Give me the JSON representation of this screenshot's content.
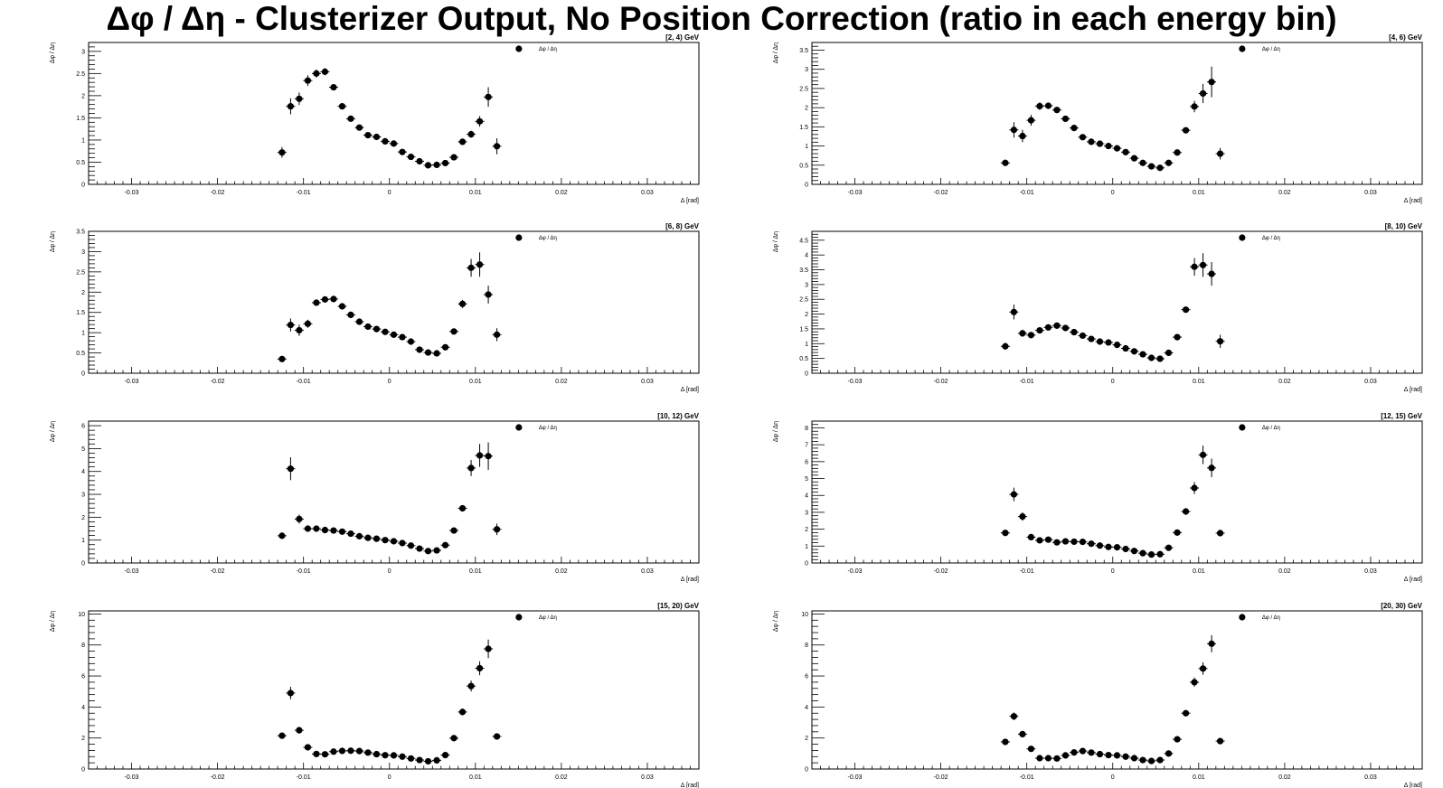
{
  "title": "Δφ / Δη  -  Clusterizer Output, No Position Correction  (ratio in each energy bin)",
  "chart_data": [
    {
      "type": "scatter",
      "bin_label": "[2, 4) GeV",
      "legend": "Δφ / Δη",
      "xlabel": "Δ  [rad]",
      "ylabel": "Δφ / Δη",
      "xlim": [
        -0.035,
        0.036
      ],
      "ylim": [
        0,
        3.2
      ],
      "xticks": [
        -0.03,
        -0.02,
        -0.01,
        0,
        0.01,
        0.02,
        0.03
      ],
      "yticks": [
        0,
        0.5,
        1,
        1.5,
        2,
        2.5,
        3
      ],
      "x": [
        -0.0125,
        -0.0115,
        -0.0105,
        -0.0095,
        -0.0085,
        -0.0075,
        -0.0065,
        -0.0055,
        -0.0045,
        -0.0035,
        -0.0025,
        -0.0015,
        -0.0005,
        0.0005,
        0.0015,
        0.0025,
        0.0035,
        0.0045,
        0.0055,
        0.0065,
        0.0075,
        0.0085,
        0.0095,
        0.0105,
        0.0115,
        0.0125
      ],
      "y": [
        0.72,
        1.76,
        1.93,
        2.34,
        2.5,
        2.54,
        2.19,
        1.76,
        1.48,
        1.28,
        1.11,
        1.07,
        0.97,
        0.92,
        0.73,
        0.62,
        0.52,
        0.43,
        0.44,
        0.48,
        0.61,
        0.96,
        1.13,
        1.42,
        1.97,
        0.86
      ],
      "yerr": [
        0.12,
        0.18,
        0.14,
        0.12,
        0.09,
        0.08,
        0.06,
        0.05,
        0.04,
        0.03,
        0.03,
        0.03,
        0.03,
        0.03,
        0.03,
        0.03,
        0.03,
        0.03,
        0.03,
        0.03,
        0.04,
        0.06,
        0.08,
        0.12,
        0.22,
        0.18
      ]
    },
    {
      "type": "scatter",
      "bin_label": "[4, 6) GeV",
      "legend": "Δφ / Δη",
      "xlabel": "Δ  [rad]",
      "ylabel": "Δφ / Δη",
      "xlim": [
        -0.035,
        0.036
      ],
      "ylim": [
        0,
        3.7
      ],
      "xticks": [
        -0.03,
        -0.02,
        -0.01,
        0,
        0.01,
        0.02,
        0.03
      ],
      "yticks": [
        0,
        0.5,
        1,
        1.5,
        2,
        2.5,
        3,
        3.5
      ],
      "x": [
        -0.0125,
        -0.0115,
        -0.0105,
        -0.0095,
        -0.0085,
        -0.0075,
        -0.0065,
        -0.0055,
        -0.0045,
        -0.0035,
        -0.0025,
        -0.0015,
        -0.0005,
        0.0005,
        0.0015,
        0.0025,
        0.0035,
        0.0045,
        0.0055,
        0.0065,
        0.0075,
        0.0085,
        0.0095,
        0.0105,
        0.0115,
        0.0125
      ],
      "y": [
        0.56,
        1.42,
        1.26,
        1.67,
        2.04,
        2.05,
        1.94,
        1.71,
        1.47,
        1.23,
        1.11,
        1.06,
        1.0,
        0.94,
        0.84,
        0.68,
        0.56,
        0.47,
        0.43,
        0.56,
        0.83,
        1.41,
        2.03,
        2.37,
        2.67,
        0.8
      ],
      "yerr": [
        0.08,
        0.2,
        0.16,
        0.14,
        0.1,
        0.08,
        0.06,
        0.05,
        0.04,
        0.03,
        0.03,
        0.03,
        0.03,
        0.03,
        0.03,
        0.03,
        0.03,
        0.03,
        0.03,
        0.03,
        0.04,
        0.08,
        0.15,
        0.25,
        0.4,
        0.15
      ]
    },
    {
      "type": "scatter",
      "bin_label": "[6, 8) GeV",
      "legend": "Δφ / Δη",
      "xlabel": "Δ  [rad]",
      "ylabel": "Δφ / Δη",
      "xlim": [
        -0.035,
        0.036
      ],
      "ylim": [
        0,
        3.5
      ],
      "xticks": [
        -0.03,
        -0.02,
        -0.01,
        0,
        0.01,
        0.02,
        0.03
      ],
      "yticks": [
        0,
        0.5,
        1,
        1.5,
        2,
        2.5,
        3,
        3.5
      ],
      "x": [
        -0.0125,
        -0.0115,
        -0.0105,
        -0.0095,
        -0.0085,
        -0.0075,
        -0.0065,
        -0.0055,
        -0.0045,
        -0.0035,
        -0.0025,
        -0.0015,
        -0.0005,
        0.0005,
        0.0015,
        0.0025,
        0.0035,
        0.0045,
        0.0055,
        0.0065,
        0.0075,
        0.0085,
        0.0095,
        0.0105,
        0.0115,
        0.0125
      ],
      "y": [
        0.35,
        1.19,
        1.06,
        1.22,
        1.74,
        1.82,
        1.83,
        1.65,
        1.44,
        1.27,
        1.15,
        1.09,
        1.02,
        0.95,
        0.89,
        0.78,
        0.58,
        0.51,
        0.49,
        0.64,
        1.03,
        1.71,
        2.6,
        2.68,
        1.94,
        0.95
      ],
      "yerr": [
        0.06,
        0.16,
        0.14,
        0.1,
        0.08,
        0.06,
        0.05,
        0.04,
        0.04,
        0.03,
        0.03,
        0.03,
        0.03,
        0.03,
        0.03,
        0.03,
        0.03,
        0.03,
        0.03,
        0.03,
        0.05,
        0.1,
        0.22,
        0.3,
        0.22,
        0.16
      ]
    },
    {
      "type": "scatter",
      "bin_label": "[8, 10) GeV",
      "legend": "Δφ / Δη",
      "xlabel": "Δ  [rad]",
      "ylabel": "Δφ / Δη",
      "xlim": [
        -0.035,
        0.036
      ],
      "ylim": [
        0,
        4.8
      ],
      "xticks": [
        -0.03,
        -0.02,
        -0.01,
        0,
        0.01,
        0.02,
        0.03
      ],
      "yticks": [
        0,
        0.5,
        1,
        1.5,
        2,
        2.5,
        3,
        3.5,
        4,
        4.5
      ],
      "x": [
        -0.0125,
        -0.0115,
        -0.0105,
        -0.0095,
        -0.0085,
        -0.0075,
        -0.0065,
        -0.0055,
        -0.0045,
        -0.0035,
        -0.0025,
        -0.0015,
        -0.0005,
        0.0005,
        0.0015,
        0.0025,
        0.0035,
        0.0045,
        0.0055,
        0.0065,
        0.0075,
        0.0085,
        0.0095,
        0.0105,
        0.0115,
        0.0125
      ],
      "y": [
        0.91,
        2.07,
        1.35,
        1.29,
        1.45,
        1.55,
        1.61,
        1.53,
        1.39,
        1.27,
        1.16,
        1.07,
        1.04,
        0.96,
        0.84,
        0.74,
        0.64,
        0.52,
        0.49,
        0.69,
        1.22,
        2.15,
        3.6,
        3.66,
        3.36,
        1.08
      ],
      "yerr": [
        0.12,
        0.25,
        0.12,
        0.1,
        0.08,
        0.06,
        0.05,
        0.05,
        0.04,
        0.04,
        0.03,
        0.03,
        0.03,
        0.03,
        0.03,
        0.03,
        0.03,
        0.03,
        0.03,
        0.04,
        0.06,
        0.1,
        0.3,
        0.4,
        0.4,
        0.22
      ]
    },
    {
      "type": "scatter",
      "bin_label": "[10, 12) GeV",
      "legend": "Δφ / Δη",
      "xlabel": "Δ  [rad]",
      "ylabel": "Δφ / Δη",
      "xlim": [
        -0.035,
        0.036
      ],
      "ylim": [
        0,
        6.2
      ],
      "xticks": [
        -0.03,
        -0.02,
        -0.01,
        0,
        0.01,
        0.02,
        0.03
      ],
      "yticks": [
        0,
        1,
        2,
        3,
        4,
        5,
        6
      ],
      "x": [
        -0.0125,
        -0.0115,
        -0.0105,
        -0.0095,
        -0.0085,
        -0.0075,
        -0.0065,
        -0.0055,
        -0.0045,
        -0.0035,
        -0.0025,
        -0.0015,
        -0.0005,
        0.0005,
        0.0015,
        0.0025,
        0.0035,
        0.0045,
        0.0055,
        0.0065,
        0.0075,
        0.0085,
        0.0095,
        0.0105,
        0.0115,
        0.0125
      ],
      "y": [
        1.19,
        4.12,
        1.92,
        1.5,
        1.5,
        1.44,
        1.42,
        1.37,
        1.28,
        1.17,
        1.1,
        1.06,
        1.0,
        0.95,
        0.87,
        0.76,
        0.63,
        0.52,
        0.55,
        0.78,
        1.42,
        2.39,
        4.15,
        4.7,
        4.67,
        1.47
      ],
      "yerr": [
        0.14,
        0.5,
        0.2,
        0.12,
        0.08,
        0.06,
        0.05,
        0.05,
        0.04,
        0.04,
        0.04,
        0.04,
        0.04,
        0.04,
        0.04,
        0.04,
        0.04,
        0.04,
        0.04,
        0.05,
        0.08,
        0.12,
        0.35,
        0.5,
        0.6,
        0.25
      ]
    },
    {
      "type": "scatter",
      "bin_label": "[12, 15) GeV",
      "legend": "Δφ / Δη",
      "xlabel": "Δ  [rad]",
      "ylabel": "Δφ / Δη",
      "xlim": [
        -0.035,
        0.036
      ],
      "ylim": [
        0,
        8.4
      ],
      "xticks": [
        -0.03,
        -0.02,
        -0.01,
        0,
        0.01,
        0.02,
        0.03
      ],
      "yticks": [
        0,
        1,
        2,
        3,
        4,
        5,
        6,
        7,
        8
      ],
      "x": [
        -0.0125,
        -0.0115,
        -0.0105,
        -0.0095,
        -0.0085,
        -0.0075,
        -0.0065,
        -0.0055,
        -0.0045,
        -0.0035,
        -0.0025,
        -0.0015,
        -0.0005,
        0.0005,
        0.0015,
        0.0025,
        0.0035,
        0.0045,
        0.0055,
        0.0065,
        0.0075,
        0.0085,
        0.0095,
        0.0105,
        0.0115,
        0.0125
      ],
      "y": [
        1.78,
        4.06,
        2.75,
        1.53,
        1.34,
        1.38,
        1.22,
        1.28,
        1.26,
        1.25,
        1.14,
        1.03,
        0.95,
        0.93,
        0.83,
        0.71,
        0.58,
        0.5,
        0.52,
        0.9,
        1.8,
        3.05,
        4.44,
        6.4,
        5.63,
        1.77
      ],
      "yerr": [
        0.16,
        0.4,
        0.25,
        0.15,
        0.1,
        0.08,
        0.07,
        0.06,
        0.06,
        0.05,
        0.05,
        0.05,
        0.05,
        0.05,
        0.05,
        0.05,
        0.05,
        0.05,
        0.05,
        0.07,
        0.12,
        0.2,
        0.35,
        0.55,
        0.55,
        0.2
      ]
    },
    {
      "type": "scatter",
      "bin_label": "[15, 20) GeV",
      "legend": "Δφ / Δη",
      "xlabel": "Δ  [rad]",
      "ylabel": "Δφ / Δη",
      "xlim": [
        -0.035,
        0.036
      ],
      "ylim": [
        0,
        10.2
      ],
      "xticks": [
        -0.03,
        -0.02,
        -0.01,
        0,
        0.01,
        0.02,
        0.03
      ],
      "yticks": [
        0,
        2,
        4,
        6,
        8,
        10
      ],
      "x": [
        -0.0125,
        -0.0115,
        -0.0105,
        -0.0095,
        -0.0085,
        -0.0075,
        -0.0065,
        -0.0055,
        -0.0045,
        -0.0035,
        -0.0025,
        -0.0015,
        -0.0005,
        0.0005,
        0.0015,
        0.0025,
        0.0035,
        0.0045,
        0.0055,
        0.0065,
        0.0075,
        0.0085,
        0.0095,
        0.0105,
        0.0115,
        0.0125
      ],
      "y": [
        2.15,
        4.9,
        2.5,
        1.4,
        0.97,
        0.95,
        1.12,
        1.17,
        1.18,
        1.16,
        1.06,
        0.96,
        0.89,
        0.88,
        0.8,
        0.68,
        0.58,
        0.5,
        0.56,
        0.9,
        1.99,
        3.68,
        5.35,
        6.5,
        7.75,
        2.1
      ],
      "yerr": [
        0.18,
        0.4,
        0.22,
        0.12,
        0.08,
        0.07,
        0.06,
        0.06,
        0.06,
        0.05,
        0.05,
        0.05,
        0.05,
        0.05,
        0.05,
        0.05,
        0.05,
        0.05,
        0.05,
        0.07,
        0.14,
        0.22,
        0.35,
        0.45,
        0.6,
        0.2
      ]
    },
    {
      "type": "scatter",
      "bin_label": "[20, 30) GeV",
      "legend": "Δφ / Δη",
      "xlabel": "Δ  [rad]",
      "ylabel": "Δφ / Δη",
      "xlim": [
        -0.035,
        0.036
      ],
      "ylim": [
        0,
        10.2
      ],
      "xticks": [
        -0.03,
        -0.02,
        -0.01,
        0,
        0.01,
        0.02,
        0.03
      ],
      "yticks": [
        0,
        2,
        4,
        6,
        8,
        10
      ],
      "x": [
        -0.0125,
        -0.0115,
        -0.0105,
        -0.0095,
        -0.0085,
        -0.0075,
        -0.0065,
        -0.0055,
        -0.0045,
        -0.0035,
        -0.0025,
        -0.0015,
        -0.0005,
        0.0005,
        0.0015,
        0.0025,
        0.0035,
        0.0045,
        0.0055,
        0.0065,
        0.0075,
        0.0085,
        0.0095,
        0.0105,
        0.0115,
        0.0125
      ],
      "y": [
        1.75,
        3.4,
        2.25,
        1.3,
        0.7,
        0.7,
        0.68,
        0.88,
        1.07,
        1.16,
        1.06,
        0.96,
        0.9,
        0.88,
        0.8,
        0.7,
        0.58,
        0.52,
        0.58,
        1.0,
        1.92,
        3.6,
        5.6,
        6.48,
        8.08,
        1.8
      ],
      "yerr": [
        0.16,
        0.25,
        0.18,
        0.1,
        0.07,
        0.06,
        0.05,
        0.05,
        0.05,
        0.05,
        0.05,
        0.05,
        0.05,
        0.05,
        0.05,
        0.05,
        0.05,
        0.05,
        0.05,
        0.07,
        0.12,
        0.2,
        0.3,
        0.4,
        0.55,
        0.18
      ]
    }
  ]
}
